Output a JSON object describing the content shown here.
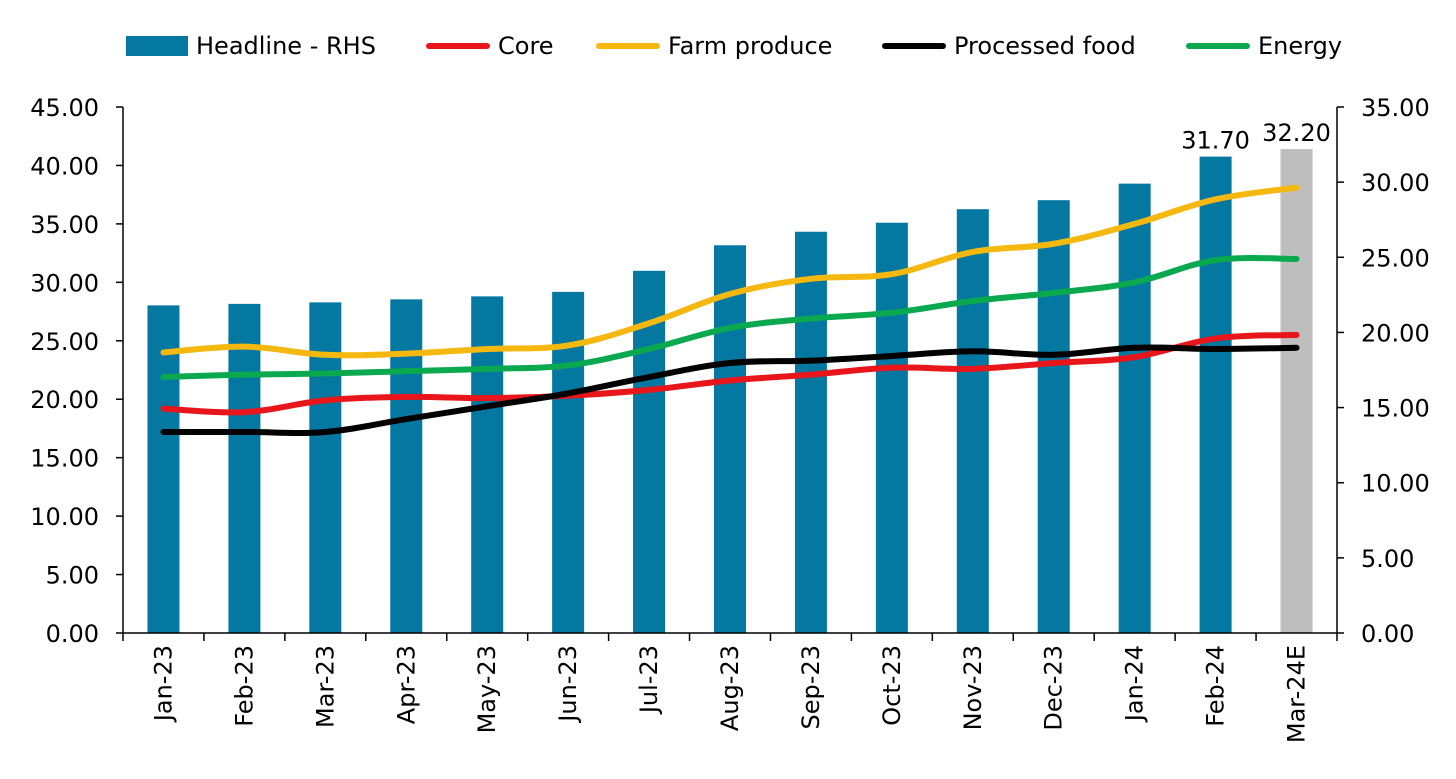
{
  "chart_data": {
    "type": "bar",
    "categories": [
      "Jan-23",
      "Feb-23",
      "Mar-23",
      "Apr-23",
      "May-23",
      "Jun-23",
      "Jul-23",
      "Aug-23",
      "Sep-23",
      "Oct-23",
      "Nov-23",
      "Dec-23",
      "Jan-24",
      "Feb-24",
      "Mar-24E"
    ],
    "left_axis": {
      "min": 0,
      "max": 45,
      "ticks": [
        "0.00",
        "5.00",
        "10.00",
        "15.00",
        "20.00",
        "25.00",
        "30.00",
        "35.00",
        "40.00",
        "45.00"
      ]
    },
    "right_axis": {
      "min": 0,
      "max": 35,
      "ticks": [
        "0.00",
        "5.00",
        "10.00",
        "15.00",
        "20.00",
        "25.00",
        "30.00",
        "35.00"
      ]
    },
    "bars": {
      "name": "Headline - RHS",
      "axis": "right",
      "values": [
        21.8,
        21.9,
        22.0,
        22.2,
        22.4,
        22.7,
        24.1,
        25.8,
        26.7,
        27.3,
        28.2,
        28.8,
        29.9,
        31.7,
        32.2
      ],
      "colors": [
        "#0478A0",
        "#0478A0",
        "#0478A0",
        "#0478A0",
        "#0478A0",
        "#0478A0",
        "#0478A0",
        "#0478A0",
        "#0478A0",
        "#0478A0",
        "#0478A0",
        "#0478A0",
        "#0478A0",
        "#0478A0",
        "#BEBEBE"
      ],
      "data_labels": [
        "",
        "",
        "",
        "",
        "",
        "",
        "",
        "",
        "",
        "",
        "",
        "",
        "",
        "31.70",
        "32.20"
      ]
    },
    "series": [
      {
        "name": "Core",
        "axis": "left",
        "color": "#E8151B",
        "values": [
          19.2,
          18.9,
          19.9,
          20.2,
          20.1,
          20.3,
          20.8,
          21.6,
          22.1,
          22.7,
          22.6,
          23.1,
          23.6,
          25.2,
          25.5
        ]
      },
      {
        "name": "Farm produce",
        "axis": "left",
        "color": "#F5B80F",
        "values": [
          24.0,
          24.5,
          23.8,
          23.9,
          24.3,
          24.6,
          26.5,
          29.0,
          30.3,
          30.7,
          32.6,
          33.3,
          35.0,
          37.1,
          38.1
        ]
      },
      {
        "name": "Processed food",
        "axis": "left",
        "color": "#000000",
        "values": [
          17.2,
          17.2,
          17.2,
          18.3,
          19.4,
          20.5,
          21.9,
          23.1,
          23.3,
          23.7,
          24.1,
          23.8,
          24.4,
          24.3,
          24.4
        ]
      },
      {
        "name": "Energy",
        "axis": "left",
        "color": "#0AA84F",
        "values": [
          21.9,
          22.1,
          22.2,
          22.4,
          22.6,
          22.9,
          24.3,
          26.1,
          26.9,
          27.4,
          28.4,
          29.1,
          30.0,
          31.9,
          32.0
        ]
      }
    ],
    "grid": false,
    "legend_position": "top"
  }
}
